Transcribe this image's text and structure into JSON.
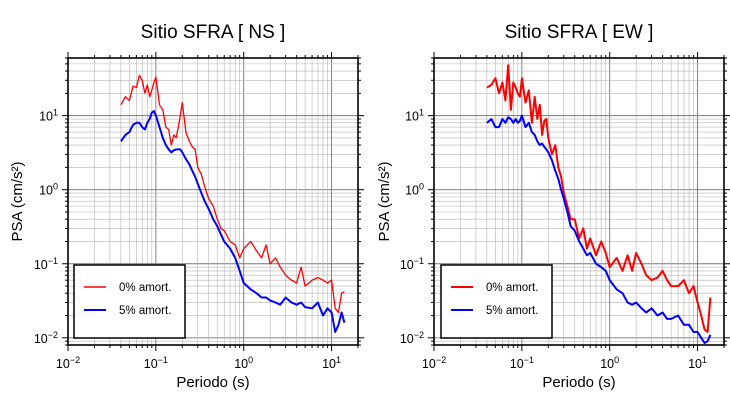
{
  "chart_data": [
    {
      "type": "line",
      "title": "Sitio SFRA [ NS ]",
      "xlabel": "Periodo (s)",
      "ylabel": "PSA (cm/s²)",
      "x_scale": "log",
      "y_scale": "log",
      "xlim": [
        0.01,
        20
      ],
      "ylim": [
        0.008,
        60
      ],
      "grid": true,
      "legend_position": "lower-left",
      "x_ticks": [
        {
          "base": "10",
          "exp": "−2"
        },
        {
          "base": "10",
          "exp": "−1"
        },
        {
          "base": "10",
          "exp": "0"
        },
        {
          "base": "10",
          "exp": "1"
        }
      ],
      "y_ticks": [
        {
          "base": "10",
          "exp": "−2"
        },
        {
          "base": "10",
          "exp": "−1"
        },
        {
          "base": "10",
          "exp": "0"
        },
        {
          "base": "10",
          "exp": "1"
        }
      ],
      "series": [
        {
          "name": "0% amort.",
          "color": "#ff0000",
          "x": [
            0.04,
            0.045,
            0.05,
            0.055,
            0.06,
            0.065,
            0.07,
            0.075,
            0.08,
            0.085,
            0.09,
            0.095,
            0.1,
            0.11,
            0.12,
            0.13,
            0.14,
            0.15,
            0.16,
            0.17,
            0.18,
            0.19,
            0.2,
            0.22,
            0.24,
            0.26,
            0.28,
            0.3,
            0.33,
            0.36,
            0.4,
            0.45,
            0.5,
            0.55,
            0.6,
            0.7,
            0.8,
            0.9,
            1.0,
            1.2,
            1.4,
            1.6,
            1.8,
            2.0,
            2.3,
            2.6,
            3.0,
            3.5,
            4.0,
            4.5,
            5.0,
            6.0,
            7.0,
            8.0,
            9.0,
            10.0,
            11.0,
            12.0,
            13.0,
            14.0
          ],
          "y": [
            14,
            18,
            16,
            25,
            24,
            35,
            30,
            20,
            26,
            18,
            22,
            28,
            33,
            14,
            12,
            7,
            6.5,
            4,
            5.5,
            5,
            7,
            10,
            15,
            6,
            4.5,
            3.8,
            3.5,
            2,
            1.6,
            1.1,
            0.75,
            0.6,
            0.4,
            0.3,
            0.28,
            0.2,
            0.18,
            0.12,
            0.16,
            0.2,
            0.15,
            0.12,
            0.18,
            0.1,
            0.12,
            0.09,
            0.07,
            0.06,
            0.055,
            0.09,
            0.05,
            0.06,
            0.065,
            0.06,
            0.055,
            0.06,
            0.025,
            0.022,
            0.04,
            0.042
          ]
        },
        {
          "name": "5% amort.",
          "color": "#0000ff",
          "x": [
            0.04,
            0.045,
            0.05,
            0.055,
            0.06,
            0.065,
            0.07,
            0.075,
            0.08,
            0.085,
            0.09,
            0.095,
            0.1,
            0.11,
            0.12,
            0.13,
            0.14,
            0.15,
            0.16,
            0.17,
            0.18,
            0.19,
            0.2,
            0.22,
            0.24,
            0.26,
            0.28,
            0.3,
            0.33,
            0.36,
            0.4,
            0.45,
            0.5,
            0.55,
            0.6,
            0.7,
            0.8,
            0.9,
            1.0,
            1.2,
            1.4,
            1.6,
            1.8,
            2.0,
            2.3,
            2.6,
            3.0,
            3.5,
            4.0,
            4.5,
            5.0,
            6.0,
            7.0,
            8.0,
            9.0,
            10.0,
            11.0,
            12.0,
            13.0,
            14.0
          ],
          "y": [
            4.5,
            5.5,
            6,
            7.5,
            8,
            8,
            7,
            6.5,
            8,
            9,
            11,
            11.5,
            10,
            7,
            5,
            4,
            3.5,
            3.2,
            3.4,
            3.5,
            3.5,
            3.5,
            3.2,
            2.6,
            2.2,
            1.8,
            1.5,
            1.2,
            0.9,
            0.7,
            0.55,
            0.4,
            0.32,
            0.25,
            0.2,
            0.16,
            0.12,
            0.08,
            0.055,
            0.045,
            0.04,
            0.035,
            0.035,
            0.032,
            0.03,
            0.028,
            0.035,
            0.03,
            0.028,
            0.03,
            0.026,
            0.025,
            0.03,
            0.02,
            0.025,
            0.022,
            0.012,
            0.015,
            0.022,
            0.016
          ]
        }
      ]
    },
    {
      "type": "line",
      "title": "Sitio SFRA [ EW ]",
      "xlabel": "Periodo (s)",
      "ylabel": "PSA (cm/s²)",
      "x_scale": "log",
      "y_scale": "log",
      "xlim": [
        0.01,
        20
      ],
      "ylim": [
        0.008,
        60
      ],
      "grid": true,
      "legend_position": "lower-left",
      "x_ticks": [
        {
          "base": "10",
          "exp": "−2"
        },
        {
          "base": "10",
          "exp": "−1"
        },
        {
          "base": "10",
          "exp": "0"
        },
        {
          "base": "10",
          "exp": "1"
        }
      ],
      "y_ticks": [
        {
          "base": "10",
          "exp": "−2"
        },
        {
          "base": "10",
          "exp": "−1"
        },
        {
          "base": "10",
          "exp": "0"
        },
        {
          "base": "10",
          "exp": "1"
        }
      ],
      "series": [
        {
          "name": "0% amort.",
          "color": "#ff0000",
          "x": [
            0.04,
            0.045,
            0.05,
            0.055,
            0.06,
            0.065,
            0.07,
            0.075,
            0.08,
            0.085,
            0.09,
            0.095,
            0.1,
            0.11,
            0.12,
            0.13,
            0.14,
            0.15,
            0.16,
            0.17,
            0.18,
            0.19,
            0.2,
            0.22,
            0.24,
            0.26,
            0.28,
            0.3,
            0.33,
            0.36,
            0.4,
            0.45,
            0.5,
            0.55,
            0.6,
            0.7,
            0.8,
            0.9,
            1.0,
            1.2,
            1.4,
            1.6,
            1.8,
            2.0,
            2.3,
            2.6,
            3.0,
            3.5,
            4.0,
            4.5,
            5.0,
            6.0,
            7.0,
            8.0,
            9.0,
            10.0,
            11.0,
            12.0,
            13.0,
            14.0
          ],
          "y": [
            24,
            26,
            32,
            20,
            28,
            16,
            48,
            12,
            28,
            24,
            20,
            18,
            32,
            15,
            22,
            8,
            18,
            9,
            14,
            5.5,
            8.5,
            9,
            5,
            3,
            4,
            2,
            1.5,
            0.9,
            0.6,
            0.4,
            0.4,
            0.22,
            0.3,
            0.16,
            0.22,
            0.13,
            0.2,
            0.14,
            0.09,
            0.12,
            0.08,
            0.13,
            0.08,
            0.14,
            0.1,
            0.07,
            0.06,
            0.065,
            0.08,
            0.06,
            0.05,
            0.05,
            0.06,
            0.04,
            0.05,
            0.03,
            0.02,
            0.013,
            0.012,
            0.035
          ]
        },
        {
          "name": "5% amort.",
          "color": "#0000ff",
          "x": [
            0.04,
            0.045,
            0.05,
            0.055,
            0.06,
            0.065,
            0.07,
            0.075,
            0.08,
            0.085,
            0.09,
            0.095,
            0.1,
            0.11,
            0.12,
            0.13,
            0.14,
            0.15,
            0.16,
            0.17,
            0.18,
            0.19,
            0.2,
            0.22,
            0.24,
            0.26,
            0.28,
            0.3,
            0.33,
            0.36,
            0.4,
            0.45,
            0.5,
            0.55,
            0.6,
            0.7,
            0.8,
            0.9,
            1.0,
            1.2,
            1.4,
            1.6,
            1.8,
            2.0,
            2.3,
            2.6,
            3.0,
            3.5,
            4.0,
            4.5,
            5.0,
            6.0,
            7.0,
            8.0,
            9.0,
            10.0,
            11.0,
            12.0,
            13.0,
            14.0
          ],
          "y": [
            8,
            9,
            7,
            7,
            9,
            8,
            9.5,
            9,
            8,
            9,
            8,
            8.5,
            10,
            7,
            8,
            6,
            5.5,
            4.5,
            4,
            4.2,
            3.8,
            3.5,
            3.2,
            2.5,
            1.8,
            1.4,
            1,
            0.75,
            0.5,
            0.32,
            0.28,
            0.2,
            0.16,
            0.13,
            0.14,
            0.1,
            0.09,
            0.08,
            0.06,
            0.045,
            0.04,
            0.03,
            0.028,
            0.03,
            0.025,
            0.022,
            0.025,
            0.02,
            0.022,
            0.018,
            0.018,
            0.02,
            0.015,
            0.015,
            0.012,
            0.012,
            0.01,
            0.0085,
            0.009,
            0.011
          ]
        }
      ]
    }
  ]
}
